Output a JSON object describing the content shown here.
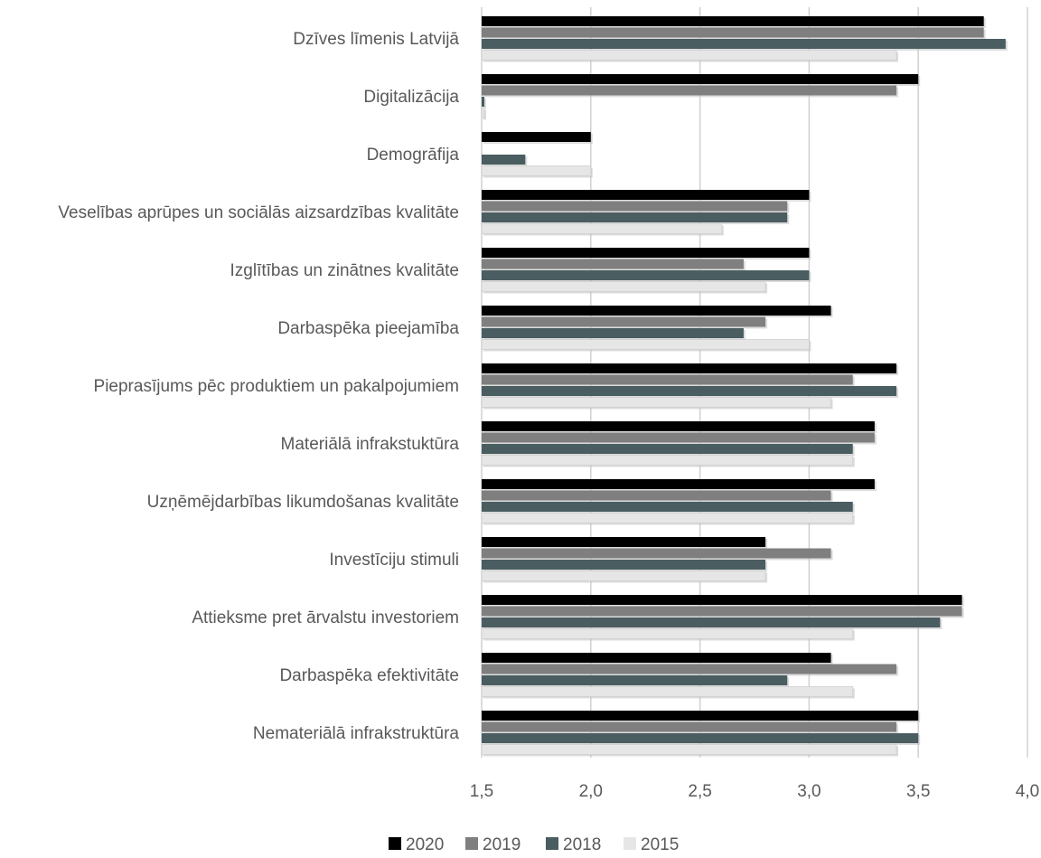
{
  "chart_data": {
    "type": "bar",
    "orientation": "horizontal",
    "categories": [
      "Dzīves līmenis Latvijā",
      "Digitalizācija",
      "Demogrāfija",
      "Veselības aprūpes un sociālās aizsardzības kvalitāte",
      "Izglītības un zinātnes kvalitāte",
      "Darbaspēka pieejamība",
      "Pieprasījums pēc produktiem un pakalpojumiem",
      "Materiālā infrakstuktūra",
      "Uzņēmējdarbības likumdošanas kvalitāte",
      "Investīciju stimuli",
      "Attieksme pret ārvalstu investoriem",
      "Darbaspēka efektivitāte",
      "Nemateriālā infrakstruktūra"
    ],
    "series": [
      {
        "name": "2020",
        "color": "#000000",
        "values": [
          3.8,
          3.5,
          2.0,
          3.0,
          3.0,
          3.1,
          3.4,
          3.3,
          3.3,
          2.8,
          3.7,
          3.1,
          3.5
        ]
      },
      {
        "name": "2019",
        "color": "#7f7f7f",
        "values": [
          3.8,
          3.4,
          null,
          2.9,
          2.7,
          2.8,
          3.2,
          3.3,
          3.1,
          3.1,
          3.7,
          3.4,
          3.4
        ]
      },
      {
        "name": "2018",
        "color": "#4a5d61",
        "values": [
          3.9,
          1.5,
          1.7,
          2.9,
          3.0,
          2.7,
          3.4,
          3.2,
          3.2,
          2.8,
          3.6,
          2.9,
          3.5
        ]
      },
      {
        "name": "2015",
        "color": "#e6e6e6",
        "values": [
          3.4,
          1.5,
          2.0,
          2.6,
          2.8,
          3.0,
          3.1,
          3.2,
          3.2,
          2.8,
          3.2,
          3.2,
          3.4
        ]
      }
    ],
    "xlim": [
      1.5,
      4.0
    ],
    "ticks": [
      "1,5",
      "2,0",
      "2,5",
      "3,0",
      "3,5",
      "4,0"
    ],
    "tick_values": [
      1.5,
      2.0,
      2.5,
      3.0,
      3.5,
      4.0
    ],
    "grid": true,
    "legend_position": "bottom"
  }
}
